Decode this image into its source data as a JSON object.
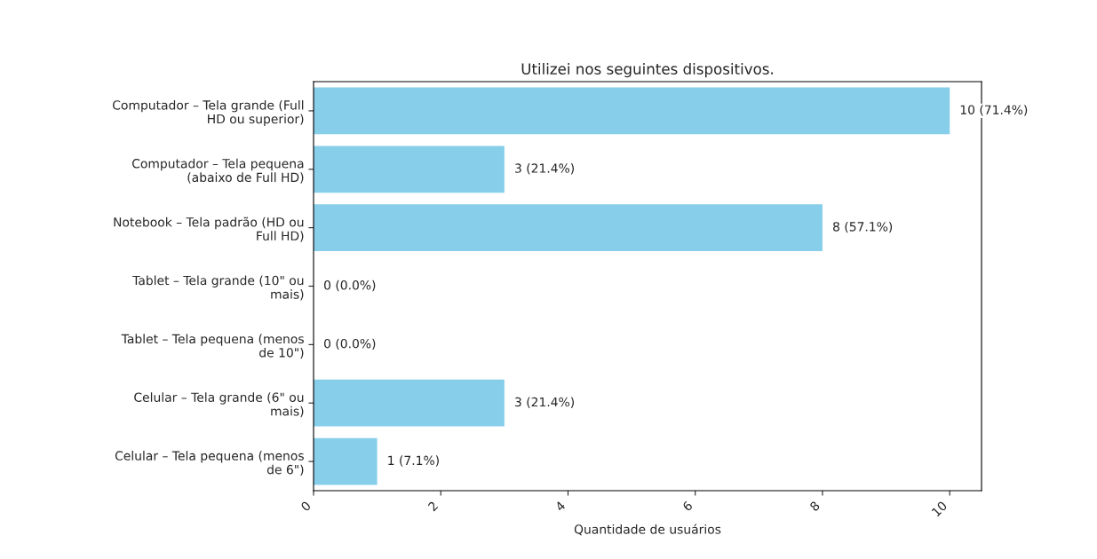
{
  "chart_data": {
    "type": "bar",
    "orientation": "horizontal",
    "title": "Utilizei nos seguintes dispositivos.",
    "xlabel": "Quantidade de usuários",
    "categories": [
      "Computador – Tela grande (Full\nHD ou superior)",
      "Computador – Tela pequena\n(abaixo de Full HD)",
      "Notebook – Tela padrão (HD ou\nFull HD)",
      "Tablet – Tela grande (10\" ou\nmais)",
      "Tablet – Tela pequena (menos\nde 10\")",
      "Celular – Tela grande (6\" ou\nmais)",
      "Celular – Tela pequena (menos\nde 6\")"
    ],
    "values": [
      10,
      3,
      8,
      0,
      0,
      3,
      1
    ],
    "value_labels": [
      "10 (71.4%)",
      "3 (21.4%)",
      "8 (57.1%)",
      "0 (0.0%)",
      "0 (0.0%)",
      "3 (21.4%)",
      "1 (7.1%)"
    ],
    "color": "#87ceeb",
    "xlim": [
      0,
      10.5
    ],
    "xticks": [
      0,
      2,
      4,
      6,
      8,
      10
    ],
    "grid": false
  }
}
